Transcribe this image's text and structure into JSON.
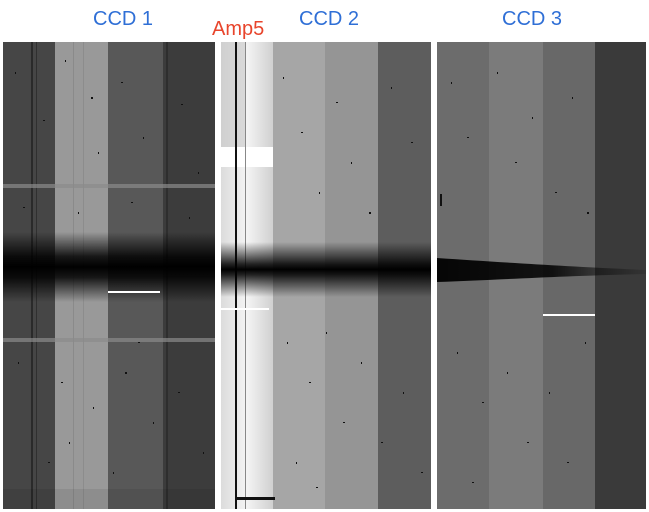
{
  "labels": {
    "ccd1": "CCD 1",
    "amp5": "Amp5",
    "ccd2": "CCD 2",
    "ccd3": "CCD 3"
  },
  "colors": {
    "ccd_label": "#2f6fd6",
    "amp_label": "#e8452c"
  }
}
